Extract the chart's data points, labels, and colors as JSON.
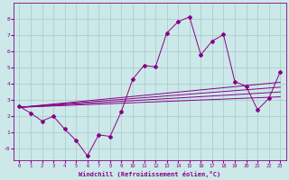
{
  "background_color": "#cce8e8",
  "grid_color": "#aad0d0",
  "line_color": "#880088",
  "marker_color": "#880088",
  "xlabel": "Windchill (Refroidissement éolien,°C)",
  "xlabel_color": "#880088",
  "tick_color": "#880088",
  "xlim": [
    -0.5,
    23.5
  ],
  "ylim": [
    -0.7,
    9.0
  ],
  "yticks": [
    0,
    1,
    2,
    3,
    4,
    5,
    6,
    7,
    8
  ],
  "ytick_labels": [
    "-0",
    "1",
    "2",
    "3",
    "4",
    "5",
    "6",
    "7",
    "8"
  ],
  "xticks": [
    0,
    1,
    2,
    3,
    4,
    5,
    6,
    7,
    8,
    9,
    10,
    11,
    12,
    13,
    14,
    15,
    16,
    17,
    18,
    19,
    20,
    21,
    22,
    23
  ],
  "scatter_x": [
    0,
    1,
    2,
    3,
    4,
    5,
    6,
    7,
    8,
    9,
    10,
    11,
    12,
    13,
    14,
    15,
    16,
    17,
    18,
    19,
    20,
    21,
    22,
    23
  ],
  "scatter_y": [
    2.6,
    2.2,
    1.7,
    2.0,
    1.2,
    0.5,
    -0.45,
    0.85,
    0.75,
    2.3,
    4.3,
    5.15,
    5.05,
    7.15,
    7.85,
    8.15,
    5.8,
    6.65,
    7.05,
    4.15,
    3.85,
    2.4,
    3.1,
    4.75
  ],
  "reg_lines": [
    {
      "x": [
        0,
        23
      ],
      "y": [
        2.55,
        3.2
      ]
    },
    {
      "x": [
        0,
        23
      ],
      "y": [
        2.55,
        3.5
      ]
    },
    {
      "x": [
        0,
        23
      ],
      "y": [
        2.55,
        3.8
      ]
    },
    {
      "x": [
        0,
        23
      ],
      "y": [
        2.55,
        4.1
      ]
    }
  ]
}
